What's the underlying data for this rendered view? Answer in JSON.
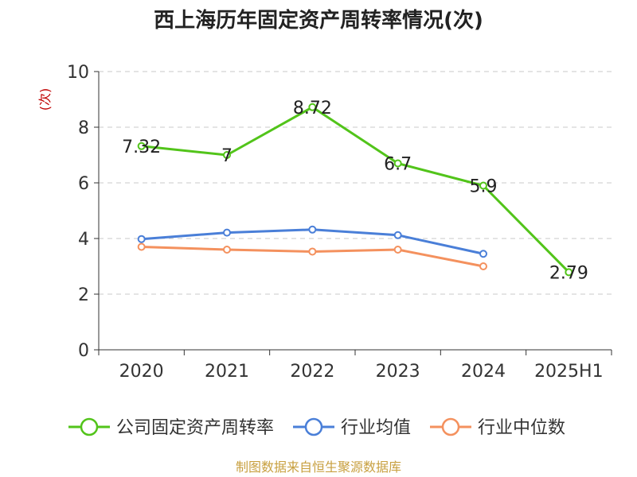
{
  "chart_data": {
    "type": "line",
    "title": "西上海历年固定资产周转率情况(次)",
    "ylabel": "(次)",
    "xlabel": "",
    "categories": [
      "2020",
      "2021",
      "2022",
      "2023",
      "2024",
      "2025H1"
    ],
    "ylim": [
      0,
      10
    ],
    "yticks": [
      0,
      2,
      4,
      6,
      8,
      10
    ],
    "grid": true,
    "legend_position": "bottom",
    "series": [
      {
        "name": "公司固定资产周转率",
        "color": "#52c41a",
        "values": [
          7.32,
          7,
          8.72,
          6.7,
          5.9,
          2.79
        ],
        "labels": [
          "7.32",
          "7",
          "8.72",
          "6.7",
          "5.9",
          "2.79"
        ]
      },
      {
        "name": "行业均值",
        "color": "#4a7fd8",
        "values": [
          3.98,
          4.21,
          4.32,
          4.12,
          3.45,
          null
        ]
      },
      {
        "name": "行业中位数",
        "color": "#f4915e",
        "values": [
          3.7,
          3.6,
          3.53,
          3.6,
          3.0,
          null
        ]
      }
    ]
  },
  "source_text": "制图数据来自恒生聚源数据库",
  "source_color": "#c8a040"
}
